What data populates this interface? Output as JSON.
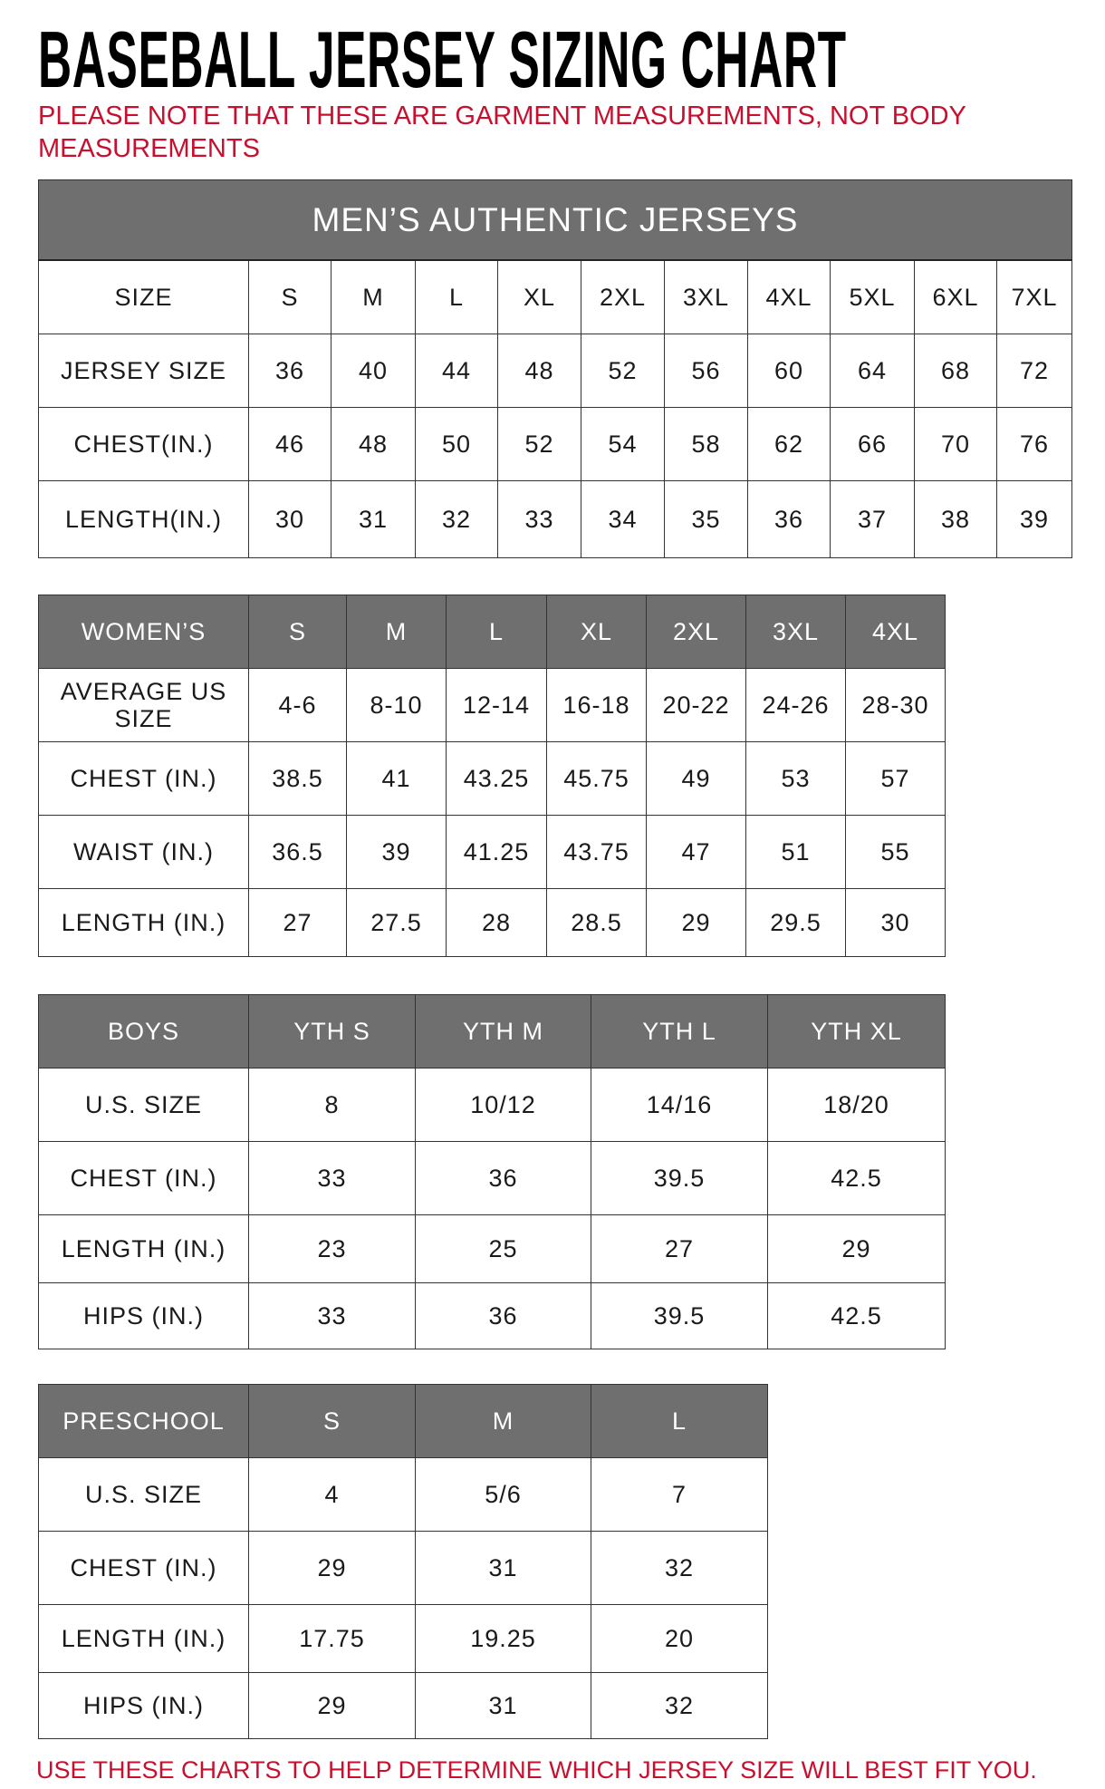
{
  "title": "BASEBALL JERSEY SIZING CHART",
  "note": "PLEASE NOTE THAT THESE ARE GARMENT MEASUREMENTS, NOT BODY MEASUREMENTS",
  "footer": "USE THESE CHARTS TO HELP DETERMINE WHICH JERSEY SIZE WILL BEST FIT YOU.",
  "colors": {
    "header_gray": "#6f6f6f",
    "accent_red": "#c8102e"
  },
  "mens": {
    "caption": "MEN’S AUTHENTIC JERSEYS",
    "rows": [
      [
        "SIZE",
        "S",
        "M",
        "L",
        "XL",
        "2XL",
        "3XL",
        "4XL",
        "5XL",
        "6XL",
        "7XL"
      ],
      [
        "JERSEY SIZE",
        "36",
        "40",
        "44",
        "48",
        "52",
        "56",
        "60",
        "64",
        "68",
        "72"
      ],
      [
        "CHEST(IN.)",
        "46",
        "48",
        "50",
        "52",
        "54",
        "58",
        "62",
        "66",
        "70",
        "76"
      ],
      [
        "LENGTH(IN.)",
        "30",
        "31",
        "32",
        "33",
        "34",
        "35",
        "36",
        "37",
        "38",
        "39"
      ]
    ]
  },
  "womens": {
    "rows": [
      [
        "WOMEN’S",
        "S",
        "M",
        "L",
        "XL",
        "2XL",
        "3XL",
        "4XL"
      ],
      [
        "AVERAGE US SIZE",
        "4-6",
        "8-10",
        "12-14",
        "16-18",
        "20-22",
        "24-26",
        "28-30"
      ],
      [
        "CHEST (IN.)",
        "38.5",
        "41",
        "43.25",
        "45.75",
        "49",
        "53",
        "57"
      ],
      [
        "WAIST (IN.)",
        "36.5",
        "39",
        "41.25",
        "43.75",
        "47",
        "51",
        "55"
      ],
      [
        "LENGTH (IN.)",
        "27",
        "27.5",
        "28",
        "28.5",
        "29",
        "29.5",
        "30"
      ]
    ]
  },
  "boys": {
    "rows": [
      [
        "BOYS",
        "YTH S",
        "YTH M",
        "YTH L",
        "YTH XL"
      ],
      [
        "U.S. SIZE",
        "8",
        "10/12",
        "14/16",
        "18/20"
      ],
      [
        "CHEST (IN.)",
        "33",
        "36",
        "39.5",
        "42.5"
      ],
      [
        "LENGTH (IN.)",
        "23",
        "25",
        "27",
        "29"
      ],
      [
        "HIPS (IN.)",
        "33",
        "36",
        "39.5",
        "42.5"
      ]
    ]
  },
  "preschool": {
    "rows": [
      [
        "PRESCHOOL",
        "S",
        "M",
        "L"
      ],
      [
        "U.S. SIZE",
        "4",
        "5/6",
        "7"
      ],
      [
        "CHEST (IN.)",
        "29",
        "31",
        "32"
      ],
      [
        "LENGTH (IN.)",
        "17.75",
        "19.25",
        "20"
      ],
      [
        "HIPS (IN.)",
        "29",
        "31",
        "32"
      ]
    ]
  }
}
